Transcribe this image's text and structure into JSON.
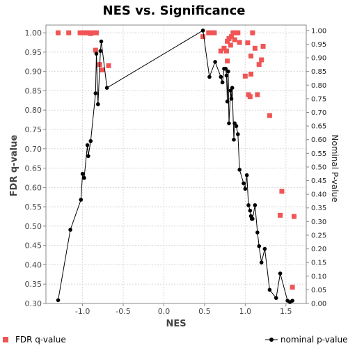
{
  "chart_data": {
    "type": "scatter",
    "title": "NES vs. Significance",
    "xlabel": "NES",
    "ylabel_left": "FDR q-value",
    "ylabel_right": "Nominal P-value",
    "xlim": [
      -1.45,
      1.75
    ],
    "ylim_left": [
      0.3,
      1.02
    ],
    "ylim_right": [
      0.0,
      1.02
    ],
    "x_ticks": [
      "-1.0",
      "-0.5",
      "0.0",
      "0.5",
      "1.0",
      "1.5"
    ],
    "y_ticks_left": [
      "0.30",
      "0.35",
      "0.40",
      "0.45",
      "0.50",
      "0.55",
      "0.60",
      "0.65",
      "0.70",
      "0.75",
      "0.80",
      "0.85",
      "0.90",
      "0.95",
      "1.00"
    ],
    "y_ticks_right": [
      "0.00",
      "0.05",
      "0.10",
      "0.15",
      "0.20",
      "0.25",
      "0.30",
      "0.35",
      "0.40",
      "0.45",
      "0.50",
      "0.55",
      "0.60",
      "0.65",
      "0.70",
      "0.75",
      "0.80",
      "0.85",
      "0.90",
      "0.95",
      "1.00"
    ],
    "grid": true,
    "legend_placement": "bottom",
    "colors": {
      "fdr": "#f05454",
      "nominal": "#000000",
      "grid": "#d8d8d8"
    },
    "series": [
      {
        "name": "FDR q-value",
        "axis": "left",
        "style": "square-markers",
        "points": [
          [
            -1.3,
            1.0
          ],
          [
            -1.17,
            1.0
          ],
          [
            -1.03,
            1.0
          ],
          [
            -1.0,
            1.0
          ],
          [
            -0.98,
            1.0
          ],
          [
            -0.95,
            1.0
          ],
          [
            -0.92,
            1.0
          ],
          [
            -0.9,
            0.998
          ],
          [
            -0.86,
            1.0
          ],
          [
            -0.83,
            1.0
          ],
          [
            -0.84,
            0.955
          ],
          [
            -0.79,
            0.918
          ],
          [
            -0.76,
            0.904
          ],
          [
            -0.68,
            0.915
          ],
          [
            0.48,
            0.99
          ],
          [
            0.55,
            1.0
          ],
          [
            0.58,
            1.0
          ],
          [
            0.62,
            1.0
          ],
          [
            0.7,
            0.953
          ],
          [
            0.74,
            0.96
          ],
          [
            0.77,
            0.953
          ],
          [
            0.78,
            0.927
          ],
          [
            0.78,
            0.978
          ],
          [
            0.8,
            0.985
          ],
          [
            0.82,
            0.968
          ],
          [
            0.83,
            0.99
          ],
          [
            0.85,
            1.0
          ],
          [
            0.87,
            0.982
          ],
          [
            0.88,
            1.0
          ],
          [
            0.91,
            1.0
          ],
          [
            0.93,
            0.975
          ],
          [
            1.0,
            0.888
          ],
          [
            1.03,
            0.974
          ],
          [
            1.04,
            0.84
          ],
          [
            1.06,
            0.835
          ],
          [
            1.07,
            0.94
          ],
          [
            1.07,
            0.893
          ],
          [
            1.09,
            1.0
          ],
          [
            1.12,
            0.96
          ],
          [
            1.15,
            0.84
          ],
          [
            1.17,
            0.918
          ],
          [
            1.2,
            0.93
          ],
          [
            1.22,
            0.965
          ],
          [
            1.3,
            0.786
          ],
          [
            1.43,
            0.528
          ],
          [
            1.45,
            0.59
          ],
          [
            1.58,
            0.342
          ],
          [
            1.6,
            0.525
          ]
        ]
      },
      {
        "name": "nominal p-value",
        "axis": "right",
        "style": "line-dot",
        "points": [
          [
            -1.3,
            0.012
          ],
          [
            -1.15,
            0.27
          ],
          [
            -1.02,
            0.38
          ],
          [
            -1.0,
            0.475
          ],
          [
            -0.98,
            0.46
          ],
          [
            -0.94,
            0.58
          ],
          [
            -0.93,
            0.54
          ],
          [
            -0.9,
            0.595
          ],
          [
            -0.84,
            0.77
          ],
          [
            -0.83,
            0.915
          ],
          [
            -0.81,
            0.73
          ],
          [
            -0.78,
            0.925
          ],
          [
            -0.77,
            0.96
          ],
          [
            -0.7,
            0.79
          ],
          [
            0.48,
            1.0
          ],
          [
            0.56,
            0.83
          ],
          [
            0.63,
            0.885
          ],
          [
            0.7,
            0.83
          ],
          [
            0.72,
            0.81
          ],
          [
            0.74,
            0.86
          ],
          [
            0.76,
            0.86
          ],
          [
            0.77,
            0.835
          ],
          [
            0.78,
            0.74
          ],
          [
            0.79,
            0.85
          ],
          [
            0.8,
            0.66
          ],
          [
            0.82,
            0.78
          ],
          [
            0.83,
            0.75
          ],
          [
            0.84,
            0.79
          ],
          [
            0.86,
            0.6
          ],
          [
            0.87,
            0.66
          ],
          [
            0.89,
            0.65
          ],
          [
            0.91,
            0.62
          ],
          [
            0.93,
            0.49
          ],
          [
            0.98,
            0.44
          ],
          [
            1.0,
            0.42
          ],
          [
            1.02,
            0.47
          ],
          [
            1.04,
            0.36
          ],
          [
            1.06,
            0.34
          ],
          [
            1.07,
            0.32
          ],
          [
            1.08,
            0.31
          ],
          [
            1.09,
            0.31
          ],
          [
            1.12,
            0.36
          ],
          [
            1.15,
            0.26
          ],
          [
            1.17,
            0.21
          ],
          [
            1.2,
            0.15
          ],
          [
            1.24,
            0.2
          ],
          [
            1.3,
            0.05
          ],
          [
            1.38,
            0.02
          ],
          [
            1.43,
            0.11
          ],
          [
            1.52,
            0.01
          ],
          [
            1.55,
            0.005
          ],
          [
            1.58,
            0.01
          ]
        ]
      }
    ]
  }
}
